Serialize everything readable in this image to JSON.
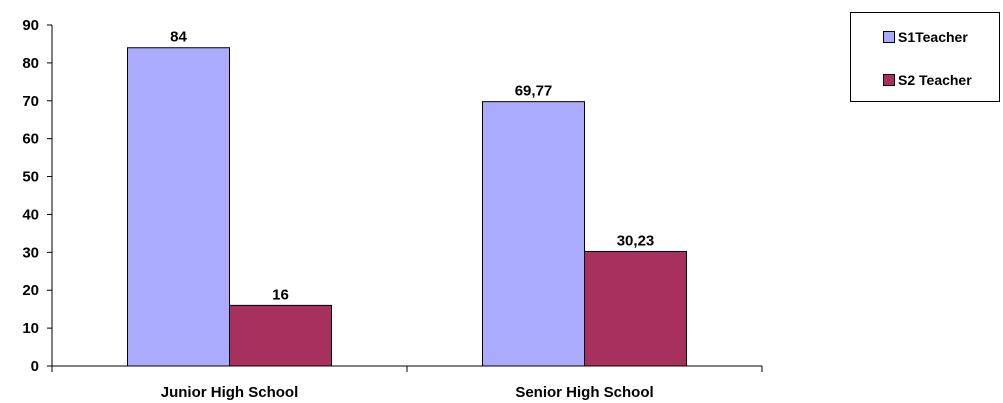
{
  "chart_data": {
    "type": "bar",
    "title": "",
    "xlabel": "",
    "ylabel": "",
    "categories": [
      "Junior High School",
      "Senior High School"
    ],
    "series": [
      {
        "name": "S1Teacher",
        "values": [
          84,
          69.77
        ],
        "labels": [
          "84",
          "69,77"
        ],
        "color": "#aaaaff"
      },
      {
        "name": "S2 Teacher",
        "values": [
          16,
          30.23
        ],
        "labels": [
          "16",
          "30,23"
        ],
        "color": "#a8305e"
      }
    ],
    "ylim": [
      0,
      90
    ],
    "yticks": [
      "0",
      "10",
      "20",
      "30",
      "40",
      "50",
      "60",
      "70",
      "80",
      "90"
    ],
    "grid": false,
    "legend_position": "top-right"
  }
}
